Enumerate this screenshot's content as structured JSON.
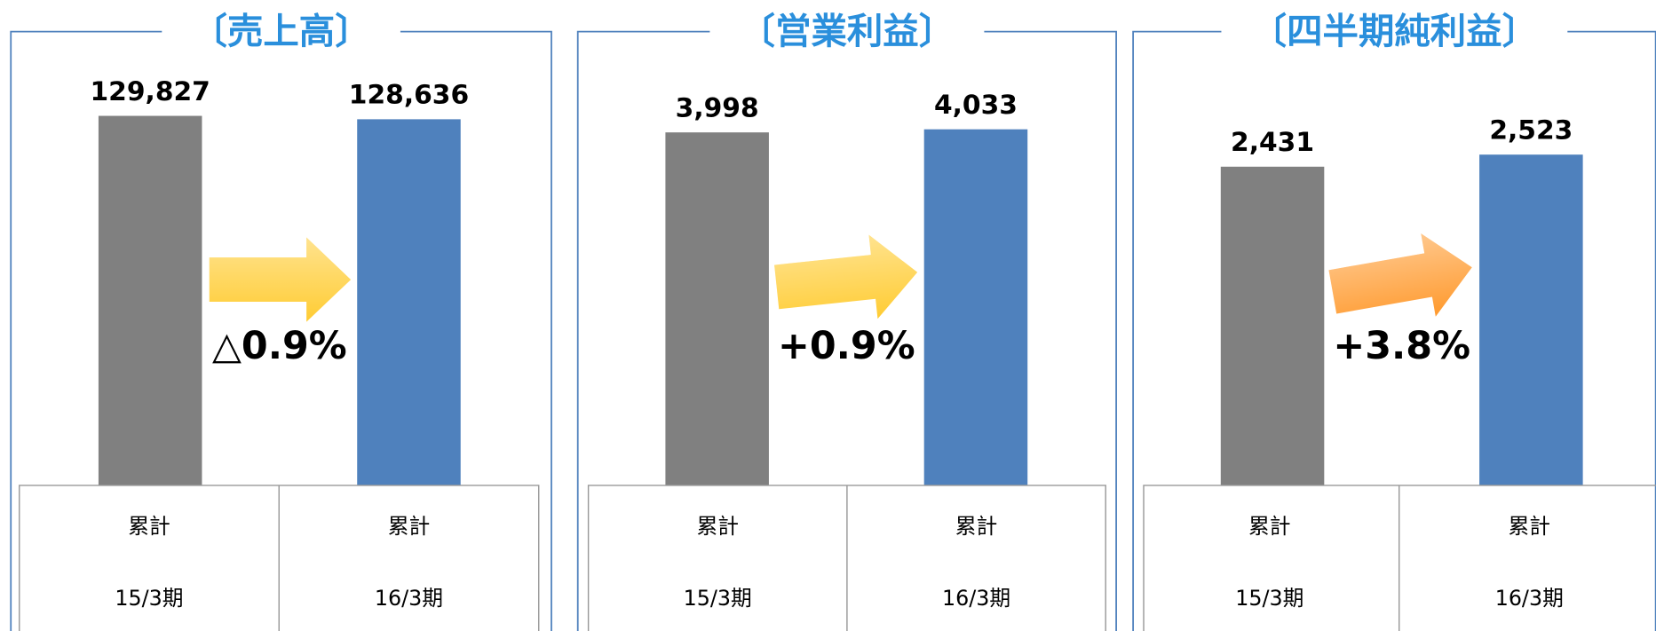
{
  "chart_data": [
    {
      "type": "bar",
      "title": "〔売上高〕",
      "categories": [
        [
          "累計",
          "15/3期"
        ],
        [
          "累計",
          "16/3期"
        ]
      ],
      "values": [
        129827,
        128636
      ],
      "value_labels": [
        "129,827",
        "128,636"
      ],
      "colors": [
        "#808080",
        "#4f81bd"
      ],
      "ylim": [
        0,
        152000
      ],
      "annotation": "△0.9%",
      "arrow_color": "#ffcc33",
      "arrow_tilt": 0
    },
    {
      "type": "bar",
      "title": "〔営業利益〕",
      "categories": [
        [
          "累計",
          "15/3期"
        ],
        [
          "累計",
          "16/3期"
        ]
      ],
      "values": [
        3998,
        4033
      ],
      "value_labels": [
        "3,998",
        "4,033"
      ],
      "colors": [
        "#808080",
        "#4f81bd"
      ],
      "ylim": [
        0,
        4900
      ],
      "annotation": "+0.9%",
      "arrow_color": "#ffcc33",
      "arrow_tilt": -6
    },
    {
      "type": "bar",
      "title": "〔四半期純利益〕",
      "categories": [
        [
          "累計",
          "15/3期"
        ],
        [
          "累計",
          "16/3期"
        ]
      ],
      "values": [
        2431,
        2523
      ],
      "value_labels": [
        "2,431",
        "2,523"
      ],
      "colors": [
        "#808080",
        "#4f81bd"
      ],
      "ylim": [
        0,
        3300
      ],
      "annotation": "+3.8%",
      "arrow_color": "#ff9a2e",
      "arrow_tilt": -10
    }
  ]
}
